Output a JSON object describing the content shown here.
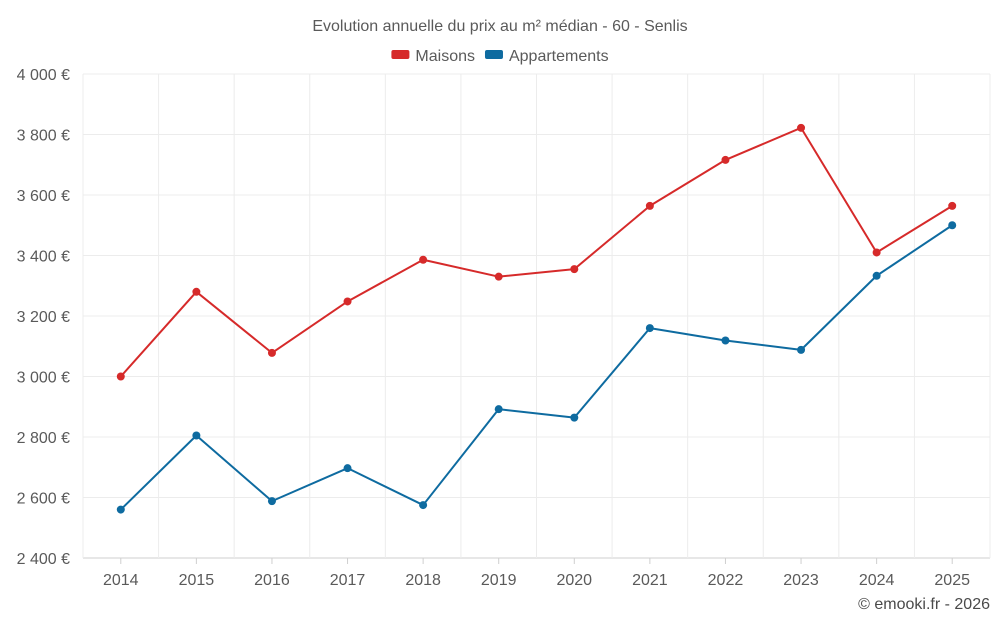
{
  "chart_data": {
    "type": "line",
    "title": "Evolution annuelle du prix au m² médian - 60 - Senlis",
    "categories": [
      "2014",
      "2015",
      "2016",
      "2017",
      "2018",
      "2019",
      "2020",
      "2021",
      "2022",
      "2023",
      "2024",
      "2025"
    ],
    "series": [
      {
        "name": "Maisons",
        "color": "#d62a2a",
        "values": [
          3000,
          3280,
          3078,
          3248,
          3386,
          3330,
          3355,
          3564,
          3716,
          3822,
          3410,
          3564
        ]
      },
      {
        "name": "Appartements",
        "color": "#0e6ba0",
        "values": [
          2560,
          2805,
          2588,
          2697,
          2575,
          2892,
          2864,
          3160,
          3119,
          3088,
          3333,
          3500
        ]
      }
    ],
    "ylim": [
      2400,
      4000
    ],
    "yticks": [
      2400,
      2600,
      2800,
      3000,
      3200,
      3400,
      3600,
      3800,
      4000
    ],
    "ytick_labels": [
      "2 400 €",
      "2 600 €",
      "2 800 €",
      "3 000 €",
      "3 200 €",
      "3 400 €",
      "3 600 €",
      "3 800 €",
      "4 000 €"
    ],
    "xlabel": "",
    "ylabel": "",
    "grid": true,
    "legend_position": "top-center"
  },
  "credit": "© emooki.fr - 2026"
}
